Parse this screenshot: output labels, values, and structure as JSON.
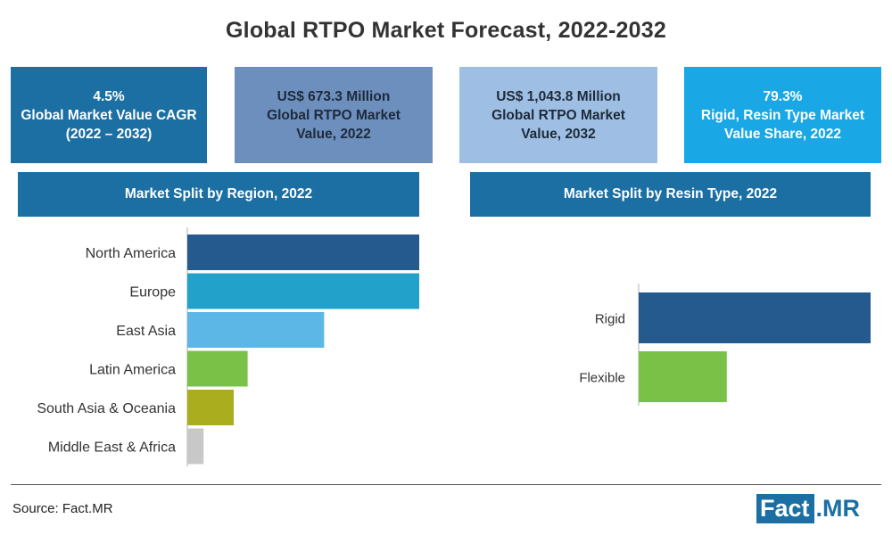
{
  "title": "Global RTPO Market Forecast, 2022-2032",
  "stats": [
    {
      "line1": "4.5%",
      "line2": "Global Market Value CAGR",
      "line3": "(2022 – 2032)",
      "color": "#1b6fa3"
    },
    {
      "line1": "US$ 673.3 Million",
      "line2": "Global RTPO Market",
      "line3": "Value, 2022",
      "color": "#6c8fbe"
    },
    {
      "line1": "US$ 1,043.8 Million",
      "line2": "Global RTPO Market",
      "line3": "Value, 2032",
      "color": "#9ebfe3"
    },
    {
      "line1": "79.3%",
      "line2": "Rigid, Resin Type Market",
      "line3": "Value Share, 2022",
      "color": "#19a7e6"
    }
  ],
  "chart_data": [
    {
      "type": "bar",
      "orientation": "horizontal",
      "title": "Market Split by Region, 2022",
      "categories": [
        "North America",
        "Europe",
        "East Asia",
        "Latin America",
        "South Asia & Oceania",
        "Middle East & Africa"
      ],
      "values": [
        100,
        100,
        59,
        26,
        20,
        7
      ],
      "colors": [
        "#255a8e",
        "#22a2cb",
        "#5cb7e6",
        "#79c147",
        "#a9ad1e",
        "#c8c8c8"
      ],
      "xlim": [
        0,
        100
      ]
    },
    {
      "type": "bar",
      "orientation": "horizontal",
      "title": "Market Split by Resin Type, 2022",
      "categories": [
        "Rigid",
        "Flexible"
      ],
      "values": [
        100,
        38
      ],
      "colors": [
        "#255a8e",
        "#79c147"
      ],
      "xlim": [
        0,
        100
      ]
    }
  ],
  "footer": {
    "source": "Source: Fact.MR",
    "logo_left": "Fact",
    "logo_right": ".MR"
  }
}
